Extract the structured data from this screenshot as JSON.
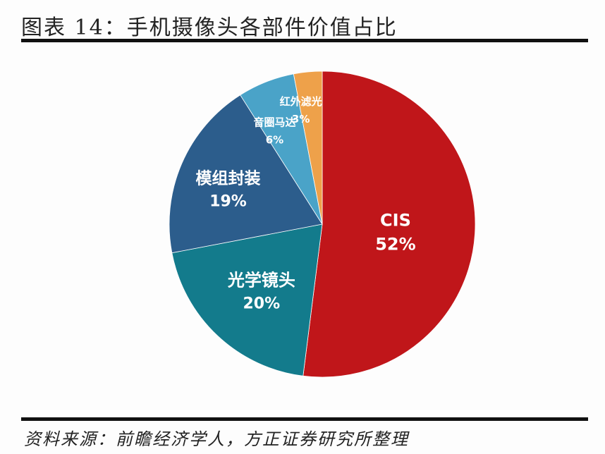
{
  "header": {
    "title": "图表 14：手机摄像头各部件价值占比"
  },
  "footer": {
    "source": "资料来源：前瞻经济学人，方正证券研究所整理"
  },
  "chart_data": {
    "type": "pie",
    "title": "图表 14：手机摄像头各部件价值占比",
    "categories": [
      "CIS",
      "光学镜头",
      "模组封装",
      "音圈马达",
      "红外滤光"
    ],
    "values": [
      52,
      20,
      19,
      6,
      3
    ],
    "unit": "%",
    "colors": [
      "#c0161a",
      "#137b8c",
      "#2c5d8c",
      "#4aa3c8",
      "#eea14a"
    ],
    "start_angle": "12 o'clock, clockwise",
    "legend": "none (labels inside slices)",
    "labels": [
      {
        "name": "CIS",
        "pct": "52%"
      },
      {
        "name": "光学镜头",
        "pct": "20%"
      },
      {
        "name": "模组封装",
        "pct": "19%"
      },
      {
        "name": "音圈马达",
        "pct": "6%"
      },
      {
        "name": "红外滤光",
        "pct": "3%"
      }
    ]
  }
}
